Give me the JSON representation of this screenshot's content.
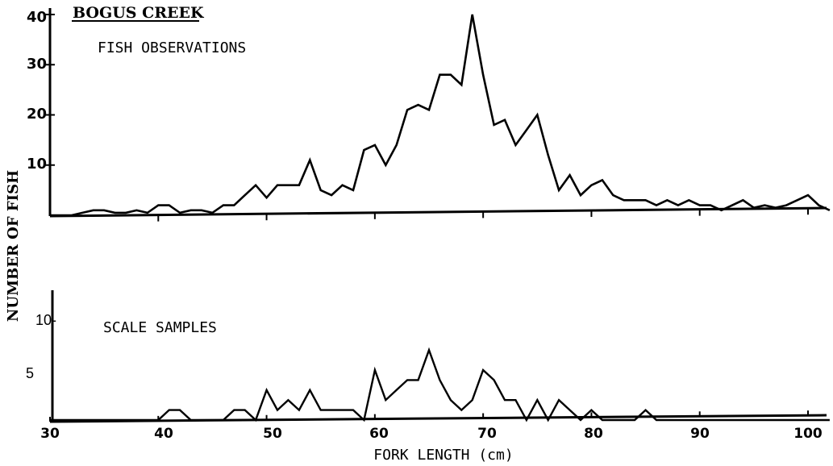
{
  "chart_data": [
    {
      "type": "line",
      "title": "BOGUS CREEK",
      "subtitle": "FISH OBSERVATIONS",
      "xlabel": "FORK LENGTH (cm)",
      "ylabel": "NUMBER OF FISH",
      "xlim": [
        30,
        102
      ],
      "ylim": [
        0,
        40
      ],
      "yticks": [
        "40",
        "30",
        "20",
        "10"
      ],
      "xticks": [
        40,
        50,
        60,
        70,
        80,
        90,
        100
      ],
      "grid": false,
      "series": [
        {
          "x": [
            30,
            32,
            33,
            34,
            35,
            36,
            37,
            38,
            39,
            40,
            41,
            42,
            43,
            44,
            45,
            46,
            47,
            48,
            49,
            50,
            51,
            52,
            53,
            54,
            55,
            56,
            57,
            58,
            59,
            60,
            61,
            62,
            63,
            64,
            65,
            66,
            67,
            68,
            69,
            70,
            71,
            72,
            73,
            74,
            75,
            76,
            77,
            78,
            79,
            80,
            81,
            82,
            83,
            84,
            85,
            86,
            87,
            88,
            89,
            90,
            91,
            92,
            93,
            94,
            95,
            96,
            97,
            98,
            99,
            100,
            101,
            102
          ],
          "values": [
            0,
            0,
            0.5,
            1,
            1,
            0.5,
            0.5,
            1,
            0.5,
            2,
            2,
            0.5,
            1,
            1,
            0.5,
            2,
            2,
            4,
            6,
            3.5,
            6,
            6,
            6,
            11,
            5,
            4,
            6,
            5,
            13,
            14,
            10,
            14,
            21,
            22,
            21,
            28,
            28,
            26,
            40,
            28,
            18,
            19,
            14,
            17,
            20,
            12,
            5,
            8,
            4,
            6,
            7,
            4,
            3,
            3,
            3,
            2,
            3,
            2,
            3,
            2,
            2,
            1,
            2,
            3,
            1.5,
            2,
            1.5,
            2,
            3,
            4,
            2,
            1
          ]
        }
      ]
    },
    {
      "type": "line",
      "subtitle": "SCALE SAMPLES",
      "xlabel": "FORK LENGTH (cm)",
      "xlim": [
        30,
        102
      ],
      "ylim": [
        0,
        12
      ],
      "yticks": [
        "10-",
        "5"
      ],
      "xticks": [
        "30",
        "40",
        "50",
        "60",
        "70",
        "80",
        "90",
        "100"
      ],
      "grid": false,
      "series": [
        {
          "x": [
            30,
            40,
            41,
            42,
            43,
            44,
            45,
            46,
            47,
            48,
            49,
            50,
            51,
            52,
            53,
            54,
            55,
            56,
            57,
            58,
            59,
            60,
            61,
            62,
            63,
            64,
            65,
            66,
            67,
            68,
            69,
            70,
            71,
            72,
            73,
            74,
            75,
            76,
            77,
            78,
            79,
            80,
            81,
            82,
            83,
            84,
            85,
            86,
            87,
            88,
            89,
            90,
            102
          ],
          "values": [
            0,
            0,
            1,
            1,
            0,
            0,
            0,
            0,
            1,
            1,
            0,
            3,
            1,
            2,
            1,
            3,
            1,
            1,
            1,
            1,
            0,
            5,
            2,
            3,
            4,
            4,
            7,
            4,
            2,
            1,
            2,
            5,
            4,
            2,
            2,
            0,
            2,
            0,
            2,
            1,
            0,
            1,
            0,
            0,
            0,
            0,
            1,
            0,
            0,
            0,
            0,
            0,
            0
          ]
        }
      ]
    }
  ]
}
